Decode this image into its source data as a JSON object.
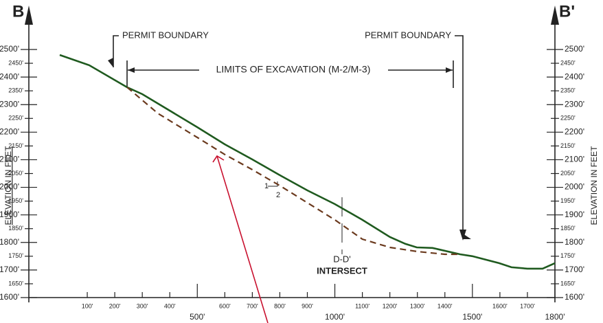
{
  "chart_data": {
    "type": "line",
    "left_label": "B",
    "right_label": "B'",
    "y_axis_label": "ELEVATION IN FEET",
    "annotations": {
      "permit_left": "PERMIT BOUNDARY",
      "permit_right": "PERMIT BOUNDARY",
      "limits": "LIMITS OF EXCAVATION (M-2/M-3)",
      "slope_rise": "1",
      "slope_run": "2",
      "intersect_1": "D-D'",
      "intersect_2": "INTERSECT"
    },
    "xlim": [
      0,
      1800
    ],
    "ylim": [
      1600,
      2500
    ],
    "xticks": [
      {
        "value": 100,
        "label": "100'"
      },
      {
        "value": 200,
        "label": "200'"
      },
      {
        "value": 300,
        "label": "300'"
      },
      {
        "value": 400,
        "label": "400'"
      },
      {
        "value": 500,
        "label": "500'"
      },
      {
        "value": 600,
        "label": "600'"
      },
      {
        "value": 700,
        "label": "700'"
      },
      {
        "value": 800,
        "label": "800'"
      },
      {
        "value": 900,
        "label": "900'"
      },
      {
        "value": 1000,
        "label": "1000'"
      },
      {
        "value": 1100,
        "label": "1100'"
      },
      {
        "value": 1200,
        "label": "1200'"
      },
      {
        "value": 1300,
        "label": "1300'"
      },
      {
        "value": 1400,
        "label": "1400'"
      },
      {
        "value": 1500,
        "label": "1500'"
      },
      {
        "value": 1600,
        "label": "1600'"
      },
      {
        "value": 1700,
        "label": "1700'"
      },
      {
        "value": 1800,
        "label": "1800'"
      }
    ],
    "yticks": [
      {
        "value": 1600,
        "label": "1600'"
      },
      {
        "value": 1650,
        "label": "1650'"
      },
      {
        "value": 1700,
        "label": "1700'"
      },
      {
        "value": 1750,
        "label": "1750'"
      },
      {
        "value": 1800,
        "label": "1800'"
      },
      {
        "value": 1850,
        "label": "1850'"
      },
      {
        "value": 1900,
        "label": "1900'"
      },
      {
        "value": 1950,
        "label": "1950'"
      },
      {
        "value": 2000,
        "label": "2000'"
      },
      {
        "value": 2050,
        "label": "2050'"
      },
      {
        "value": 2100,
        "label": "2100'"
      },
      {
        "value": 2150,
        "label": "2150'"
      },
      {
        "value": 2200,
        "label": "2200'"
      },
      {
        "value": 2250,
        "label": "2250'"
      },
      {
        "value": 2300,
        "label": "2300'"
      },
      {
        "value": 2350,
        "label": "2350'"
      },
      {
        "value": 2400,
        "label": "2400'"
      },
      {
        "value": 2450,
        "label": "2450'"
      },
      {
        "value": 2500,
        "label": "2500'"
      }
    ],
    "series": [
      {
        "color": "#1f5a1f",
        "dash": false,
        "x": [
          0,
          107,
          245,
          300,
          500,
          600,
          700,
          800,
          900,
          1000,
          1100,
          1200,
          1256,
          1298,
          1355,
          1455,
          1500,
          1597,
          1642,
          1700,
          1755,
          1800
        ],
        "values": [
          2480,
          2443,
          2363,
          2338,
          2218,
          2156,
          2101,
          2044,
          1989,
          1939,
          1882,
          1820,
          1795,
          1782,
          1780,
          1757,
          1750,
          1725,
          1710,
          1705,
          1705,
          1725
        ]
      },
      {
        "color": "#6b3a1e",
        "dash": true,
        "x": [
          245,
          357,
          500,
          600,
          700,
          800,
          900,
          1000,
          1100,
          1200,
          1300,
          1400,
          1455
        ],
        "values": [
          2363,
          2268,
          2181,
          2119,
          2064,
          2006,
          1944,
          1882,
          1812,
          1782,
          1767,
          1757,
          1757
        ]
      }
    ]
  }
}
